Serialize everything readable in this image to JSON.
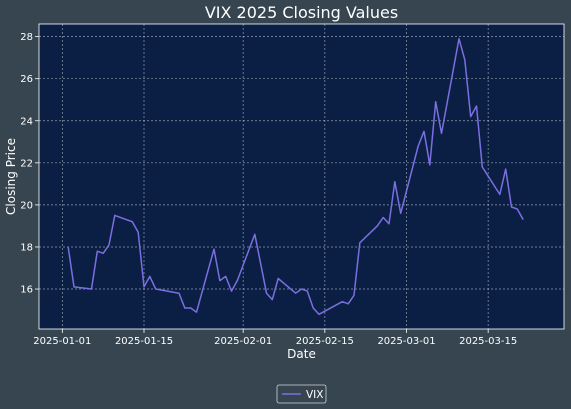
{
  "chart_data": {
    "type": "line",
    "title": "VIX 2025 Closing Values",
    "xlabel": "Date",
    "ylabel": "Closing Price",
    "x_ticks": [
      "2025-01-01",
      "2025-01-15",
      "2025-02-01",
      "2025-02-15",
      "2025-03-01",
      "2025-03-15"
    ],
    "y_ticks": [
      16,
      18,
      20,
      22,
      24,
      26,
      28
    ],
    "xlim": [
      "2024-12-28",
      "2025-03-28"
    ],
    "ylim": [
      14.1,
      28.6
    ],
    "grid": true,
    "legend_position": "bottom-center",
    "series": [
      {
        "name": "VIX",
        "color": "#7b6fe0",
        "x": [
          "2025-01-02",
          "2025-01-03",
          "2025-01-06",
          "2025-01-07",
          "2025-01-08",
          "2025-01-09",
          "2025-01-10",
          "2025-01-13",
          "2025-01-14",
          "2025-01-15",
          "2025-01-16",
          "2025-01-17",
          "2025-01-21",
          "2025-01-22",
          "2025-01-23",
          "2025-01-24",
          "2025-01-27",
          "2025-01-28",
          "2025-01-29",
          "2025-01-30",
          "2025-01-31",
          "2025-02-03",
          "2025-02-04",
          "2025-02-05",
          "2025-02-06",
          "2025-02-07",
          "2025-02-10",
          "2025-02-11",
          "2025-02-12",
          "2025-02-13",
          "2025-02-14",
          "2025-02-18",
          "2025-02-19",
          "2025-02-20",
          "2025-02-21",
          "2025-02-24",
          "2025-02-25",
          "2025-02-26",
          "2025-02-27",
          "2025-02-28",
          "2025-03-03",
          "2025-03-04",
          "2025-03-05",
          "2025-03-06",
          "2025-03-07",
          "2025-03-10",
          "2025-03-11",
          "2025-03-12",
          "2025-03-13",
          "2025-03-14",
          "2025-03-17",
          "2025-03-18",
          "2025-03-19",
          "2025-03-20",
          "2025-03-21"
        ],
        "values": [
          18.0,
          16.1,
          16.0,
          17.8,
          17.7,
          18.1,
          19.5,
          19.2,
          18.7,
          16.1,
          16.6,
          16.0,
          15.8,
          15.1,
          15.1,
          14.9,
          17.9,
          16.4,
          16.6,
          15.9,
          16.4,
          18.6,
          17.2,
          15.8,
          15.5,
          16.5,
          15.8,
          16.0,
          15.9,
          15.1,
          14.8,
          15.4,
          15.3,
          15.7,
          18.2,
          19.0,
          19.4,
          19.1,
          21.1,
          19.6,
          22.8,
          23.5,
          21.9,
          24.9,
          23.4,
          27.9,
          26.9,
          24.2,
          24.7,
          21.8,
          20.5,
          21.7,
          19.9,
          19.8,
          19.3
        ]
      }
    ]
  }
}
